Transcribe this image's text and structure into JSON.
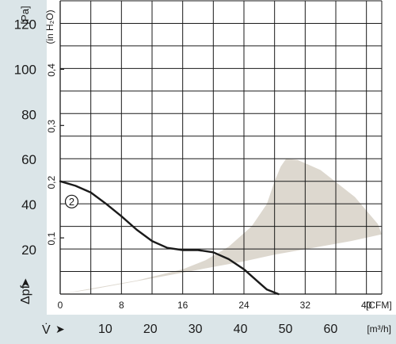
{
  "chart_data": {
    "type": "line",
    "colors": {
      "panel": "#dbe5e8",
      "grid": "#1a1a1a",
      "curve": "#1a1a1a",
      "band": "#ddd8cf"
    },
    "left_axis": {
      "unit_label": "[Pa]",
      "ylim": [
        0,
        130
      ],
      "ticks": [
        20,
        40,
        60,
        80,
        100,
        120
      ],
      "tick_labels": [
        "20",
        "40",
        "60",
        "80",
        "100",
        "120"
      ],
      "label_prefix": "Δpf",
      "arrow_glyph": "➤"
    },
    "inner_axis": {
      "unit_label": "(in H₂O)",
      "ticks": [
        0.1,
        0.2,
        0.3,
        0.4
      ],
      "tick_labels": [
        "0,1",
        "0,2",
        "0,3",
        "0,4"
      ],
      "pa_per_unit": 249.09
    },
    "x_axis_cfm": {
      "unit_label": "[CFM]",
      "xlim": [
        0,
        42
      ],
      "ticks": [
        0,
        8,
        16,
        24,
        32,
        40
      ],
      "tick_labels": [
        "0",
        "8",
        "16",
        "24",
        "32",
        "40"
      ]
    },
    "x_axis_m3h": {
      "unit_label": "[m³/h]",
      "ticks": [
        10,
        20,
        30,
        40,
        50,
        60
      ],
      "tick_labels": [
        "10",
        "20",
        "30",
        "40",
        "50",
        "60"
      ],
      "m3h_per_cfm": 1.699,
      "label_prefix": "V̇",
      "arrow_glyph": "➤"
    },
    "grid": true,
    "series": [
      {
        "label": "2",
        "x": [
          0,
          2,
          4,
          6,
          8,
          10,
          12,
          14,
          16,
          17,
          18,
          20,
          22,
          24,
          26,
          27,
          28.5
        ],
        "y": [
          50,
          48,
          45,
          40,
          34.5,
          28.5,
          23.5,
          20.5,
          19.5,
          19.5,
          19.5,
          18.5,
          15.5,
          11,
          5,
          2,
          0
        ]
      }
    ],
    "band": {
      "upper": {
        "x": [
          0,
          10,
          16,
          19,
          22,
          25,
          27,
          28,
          28.8,
          29.5,
          31,
          34,
          37,
          38.5,
          40,
          41.5,
          42
        ],
        "y": [
          0,
          6,
          11,
          15,
          21,
          30,
          40,
          50,
          56.5,
          60,
          59.5,
          55,
          47,
          43,
          37,
          31,
          26.5
        ]
      },
      "lower": {
        "x": [
          42,
          38,
          33,
          28,
          24,
          20,
          16,
          12,
          8,
          4,
          0
        ],
        "y": [
          26.5,
          23.5,
          20.5,
          17.5,
          14.5,
          12,
          9.5,
          7,
          4.5,
          2,
          0
        ]
      }
    }
  }
}
